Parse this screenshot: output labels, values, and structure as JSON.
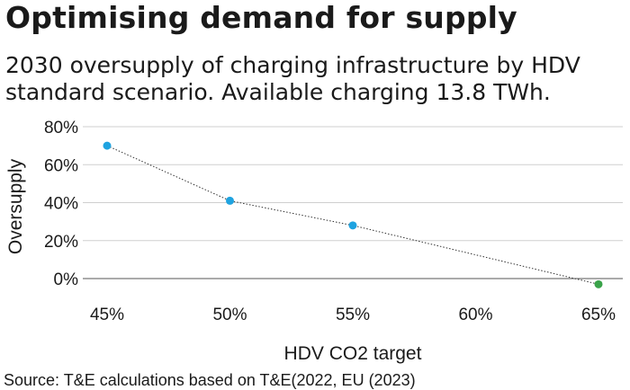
{
  "title": "Optimising demand for supply",
  "subtitle_lines": [
    "2030 oversupply of charging infrastructure by HDV",
    "standard scenario. Available charging 13.8 TWh."
  ],
  "source": "Source: T&E calculations based on T&E(2022, EU (2023)",
  "colors": {
    "point_default": "#1fa3e0",
    "point_highlight": "#3aa34a",
    "gridline": "#cfcfcf",
    "axis_text": "#1a1a1a",
    "trend_line": "#333333"
  },
  "chart_data": {
    "type": "scatter",
    "title": "",
    "xlabel": "HDV CO2 target",
    "ylabel": "Oversupply",
    "x_categories": [
      "45%",
      "50%",
      "55%",
      "60%",
      "65%"
    ],
    "y_ticks": [
      "80%",
      "60%",
      "40%",
      "20%",
      "0%"
    ],
    "ylim": [
      -0.05,
      0.8
    ],
    "points": [
      {
        "x": "45%",
        "y": 0.7,
        "highlight": false
      },
      {
        "x": "50%",
        "y": 0.41,
        "highlight": false
      },
      {
        "x": "55%",
        "y": 0.28,
        "highlight": false
      },
      {
        "x": "65%",
        "y": -0.03,
        "highlight": true
      }
    ],
    "connector": "dotted",
    "grid": true
  }
}
